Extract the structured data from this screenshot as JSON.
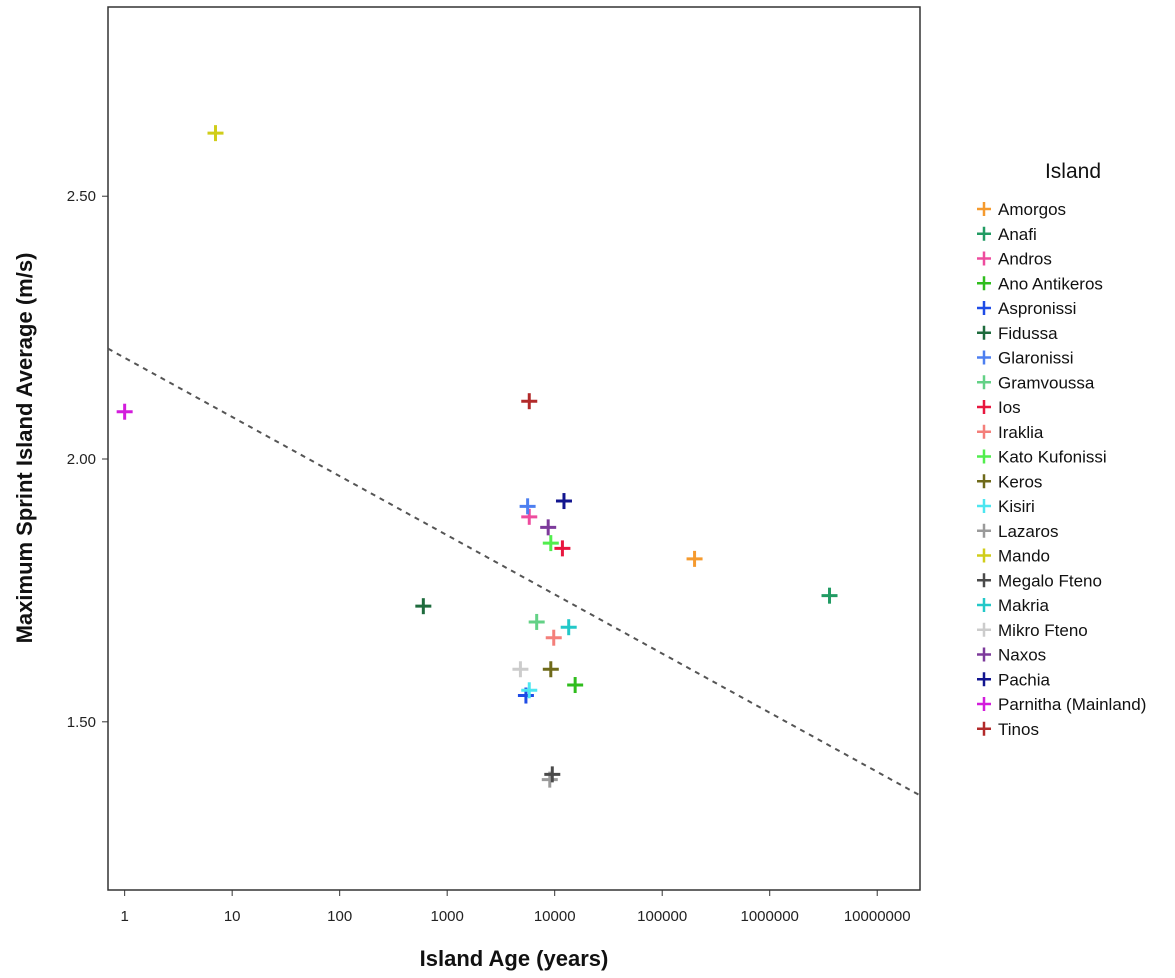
{
  "chart_data": {
    "type": "scatter",
    "title": "",
    "xlabel": "Island Age (years)",
    "ylabel": "Maximum Sprint Island Average (m/s)",
    "x_scale": "log",
    "xlim": [
      0.7,
      25000000
    ],
    "ylim": [
      1.18,
      2.86
    ],
    "x_ticks": [
      1,
      10,
      100,
      1000,
      10000,
      100000,
      1000000,
      10000000
    ],
    "x_tick_labels": [
      "1",
      "10",
      "100",
      "1000",
      "10000",
      "100000",
      "1000000",
      "10000000"
    ],
    "y_ticks": [
      1.5,
      2.0,
      2.5
    ],
    "y_tick_labels": [
      "1.50",
      "2.00",
      "2.50"
    ],
    "grid": false,
    "legend_title": "Island",
    "legend_position": "right",
    "marker": "plus",
    "trend_line": {
      "style": "dashed",
      "x": [
        0.7,
        25000000
      ],
      "y": [
        2.21,
        1.36
      ]
    },
    "series": [
      {
        "name": "Amorgos",
        "color": "#f59a2e",
        "x": 200000,
        "y": 1.81
      },
      {
        "name": "Anafi",
        "color": "#219b63",
        "x": 3600000,
        "y": 1.74
      },
      {
        "name": "Andros",
        "color": "#ee4c9e",
        "x": 5800,
        "y": 1.89
      },
      {
        "name": "Ano Antikeros",
        "color": "#2fbd1d",
        "x": 15500,
        "y": 1.57
      },
      {
        "name": "Aspronissi",
        "color": "#1f4ce6",
        "x": 5400,
        "y": 1.55
      },
      {
        "name": "Fidussa",
        "color": "#1e6b3d",
        "x": 600,
        "y": 1.72
      },
      {
        "name": "Glaronissi",
        "color": "#4d7ff0",
        "x": 5600,
        "y": 1.91
      },
      {
        "name": "Gramvoussa",
        "color": "#63d186",
        "x": 6800,
        "y": 1.69
      },
      {
        "name": "Ios",
        "color": "#e8173f",
        "x": 11800,
        "y": 1.83
      },
      {
        "name": "Iraklia",
        "color": "#f47f7a",
        "x": 9800,
        "y": 1.66
      },
      {
        "name": "Kato Kufonissi",
        "color": "#51ee4d",
        "x": 9200,
        "y": 1.84
      },
      {
        "name": "Keros",
        "color": "#6f6a1a",
        "x": 9200,
        "y": 1.6
      },
      {
        "name": "Kisiri",
        "color": "#4de6f0",
        "x": 5800,
        "y": 1.56
      },
      {
        "name": "Lazaros",
        "color": "#9a9a9a",
        "x": 9000,
        "y": 1.39
      },
      {
        "name": "Mando",
        "color": "#d0cd1a",
        "x": 7,
        "y": 2.62
      },
      {
        "name": "Megalo Fteno",
        "color": "#4a4a4a",
        "x": 9500,
        "y": 1.4
      },
      {
        "name": "Makria",
        "color": "#23c8c8",
        "x": 13500,
        "y": 1.68
      },
      {
        "name": "Mikro Fteno",
        "color": "#cccccc",
        "x": 4800,
        "y": 1.6
      },
      {
        "name": "Naxos",
        "color": "#7d3a9b",
        "x": 8700,
        "y": 1.87
      },
      {
        "name": "Pachia",
        "color": "#12158f",
        "x": 12200,
        "y": 1.92
      },
      {
        "name": "Parnitha (Mainland)",
        "color": "#d31cdc",
        "x": 1,
        "y": 2.09
      },
      {
        "name": "Tinos",
        "color": "#b22a2a",
        "x": 5800,
        "y": 2.11
      }
    ]
  }
}
